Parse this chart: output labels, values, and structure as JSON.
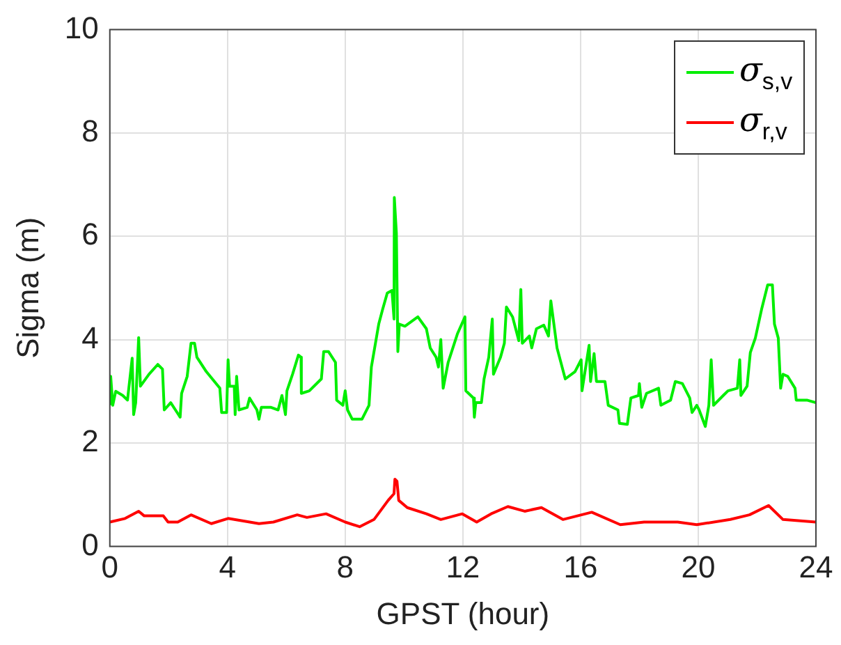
{
  "chart_data": {
    "type": "line",
    "xlabel": "GPST (hour)",
    "ylabel": "Sigma (m)",
    "xlim": [
      0,
      24
    ],
    "xticks": [
      0,
      4,
      8,
      12,
      16,
      20,
      24
    ],
    "ylim": [
      0,
      10
    ],
    "yticks": [
      0,
      2,
      4,
      6,
      8,
      10
    ],
    "grid": true,
    "legend": "top right",
    "marker": "none",
    "line_style": "solid",
    "series": [
      {
        "name": "σ$_{s,v}$",
        "color": "#00ee00",
        "x": [
          0,
          0.03,
          0.1,
          0.2,
          0.44,
          0.6,
          0.76,
          0.81,
          0.88,
          0.98,
          1.04,
          1.33,
          1.63,
          1.79,
          1.85,
          2.07,
          2.23,
          2.39,
          2.44,
          2.63,
          2.76,
          2.88,
          2.96,
          3.28,
          3.74,
          3.8,
          3.97,
          4.02,
          4.07,
          4.23,
          4.26,
          4.31,
          4.39,
          4.67,
          4.75,
          5.0,
          5.07,
          5.15,
          5.48,
          5.72,
          5.85,
          5.97,
          6.02,
          6.21,
          6.41,
          6.5,
          6.51,
          6.78,
          7.19,
          7.27,
          7.43,
          7.67,
          7.71,
          7.92,
          8.0,
          8.08,
          8.24,
          8.57,
          8.81,
          8.89,
          9.14,
          9.27,
          9.43,
          9.59,
          9.66,
          9.67,
          9.74,
          9.79,
          9.84,
          10.03,
          10.47,
          10.76,
          10.89,
          11.09,
          11.17,
          11.25,
          11.33,
          11.5,
          11.82,
          12.07,
          12.1,
          12.36,
          12.39,
          12.44,
          12.63,
          12.72,
          12.88,
          13.0,
          13.04,
          13.28,
          13.41,
          13.48,
          13.69,
          13.9,
          13.97,
          14.02,
          14.26,
          14.34,
          14.5,
          14.75,
          14.91,
          14.99,
          15.2,
          15.48,
          15.81,
          16.02,
          16.05,
          16.29,
          16.34,
          16.46,
          16.54,
          16.83,
          16.94,
          17.27,
          17.32,
          17.59,
          17.71,
          17.97,
          18.0,
          18.08,
          18.24,
          18.65,
          18.73,
          19.06,
          19.22,
          19.46,
          19.71,
          19.79,
          19.95,
          20.03,
          20.24,
          20.36,
          20.44,
          20.52,
          20.85,
          21.01,
          21.33,
          21.41,
          21.45,
          21.66,
          21.77,
          21.94,
          22.15,
          22.36,
          22.52,
          22.59,
          22.72,
          22.8,
          22.88,
          23.04,
          23.29,
          23.33,
          23.69,
          24
        ],
        "values": [
          2.73,
          3.29,
          2.73,
          3.0,
          2.92,
          2.83,
          3.64,
          2.55,
          2.78,
          4.04,
          3.1,
          3.33,
          3.52,
          3.43,
          2.64,
          2.78,
          2.64,
          2.5,
          2.96,
          3.29,
          3.93,
          3.93,
          3.66,
          3.38,
          3.06,
          2.59,
          2.59,
          3.61,
          3.1,
          3.1,
          2.55,
          3.29,
          2.64,
          2.69,
          2.87,
          2.64,
          2.46,
          2.69,
          2.69,
          2.64,
          2.92,
          2.55,
          3.01,
          3.33,
          3.7,
          3.66,
          2.96,
          3.01,
          3.24,
          3.77,
          3.77,
          3.56,
          2.83,
          2.73,
          3.01,
          2.64,
          2.46,
          2.46,
          2.73,
          3.47,
          4.3,
          4.58,
          4.9,
          4.95,
          4.4,
          6.75,
          6.06,
          3.77,
          4.3,
          4.26,
          4.44,
          4.21,
          3.84,
          3.66,
          3.47,
          4.0,
          3.06,
          3.56,
          4.12,
          4.44,
          3.01,
          2.87,
          2.5,
          2.78,
          2.78,
          3.24,
          3.66,
          4.4,
          3.33,
          3.66,
          3.93,
          4.63,
          4.44,
          3.98,
          4.97,
          3.93,
          4.07,
          3.84,
          4.21,
          4.28,
          4.07,
          4.75,
          3.84,
          3.24,
          3.38,
          3.61,
          3.01,
          3.89,
          3.19,
          3.73,
          3.19,
          3.19,
          2.73,
          2.64,
          2.38,
          2.36,
          2.87,
          2.92,
          3.15,
          2.69,
          2.96,
          3.06,
          2.73,
          2.83,
          3.19,
          3.15,
          2.87,
          2.59,
          2.73,
          2.64,
          2.32,
          2.73,
          3.61,
          2.73,
          2.92,
          3.01,
          3.06,
          3.61,
          2.92,
          3.1,
          3.75,
          4.03,
          4.58,
          5.06,
          5.06,
          4.3,
          4.03,
          3.06,
          3.33,
          3.29,
          3.06,
          2.83,
          2.83,
          2.78
        ]
      },
      {
        "name": "σ$_{r,v}$",
        "color": "#ff0000",
        "x": [
          0,
          0.52,
          0.98,
          1.17,
          1.82,
          1.98,
          2.31,
          2.76,
          3.45,
          4.02,
          5.07,
          5.56,
          6.37,
          6.7,
          7.35,
          8.0,
          8.49,
          8.98,
          9.46,
          9.66,
          9.69,
          9.76,
          9.82,
          10.11,
          10.76,
          11.25,
          11.98,
          12.47,
          12.96,
          13.53,
          14.1,
          14.67,
          15.4,
          16.38,
          17.35,
          18.16,
          19.3,
          19.95,
          21.09,
          21.74,
          22.39,
          22.88,
          24
        ],
        "values": [
          0.47,
          0.54,
          0.68,
          0.59,
          0.59,
          0.47,
          0.47,
          0.61,
          0.44,
          0.54,
          0.44,
          0.47,
          0.61,
          0.56,
          0.63,
          0.47,
          0.38,
          0.52,
          0.89,
          1.02,
          1.3,
          1.26,
          0.89,
          0.75,
          0.63,
          0.52,
          0.63,
          0.47,
          0.63,
          0.77,
          0.68,
          0.75,
          0.52,
          0.66,
          0.42,
          0.47,
          0.47,
          0.42,
          0.52,
          0.61,
          0.79,
          0.52,
          0.47
        ]
      }
    ]
  }
}
